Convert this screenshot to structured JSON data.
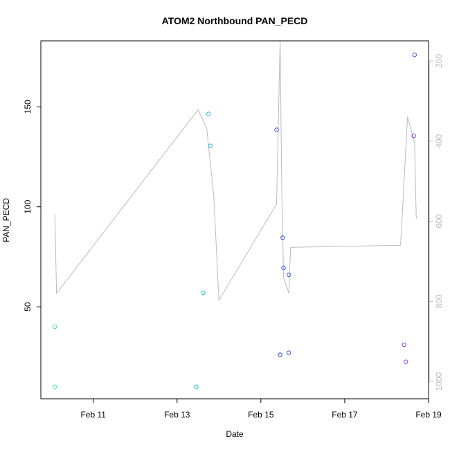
{
  "chart_data": {
    "type": "scatter",
    "title": "ATOM2 Northbound PAN_PECD",
    "xlabel": "Date",
    "ylabel": "PAN_PECD",
    "x_ticks": [
      "2000-02-11",
      "2000-02-13",
      "2000-02-15",
      "2000-02-17",
      "2000-02-19"
    ],
    "x_tick_labels": [
      "Feb 11",
      "Feb 13",
      "Feb 15",
      "Feb 17",
      "Feb 19"
    ],
    "xlim": [
      "2000-02-09T18:00",
      "2000-02-19T00:00"
    ],
    "ylim": [
      4,
      183
    ],
    "y_ticks": [
      50,
      100,
      150
    ],
    "y2_ticks": [
      200,
      400,
      600,
      800,
      1000
    ],
    "y2lim": [
      1043,
      150
    ],
    "grid": false,
    "legend": "none",
    "point_series": [
      {
        "color": "#40e0a0",
        "points": [
          {
            "x": "2000-02-10T02:00",
            "y": 40
          },
          {
            "x": "2000-02-10T02:00",
            "y": 10
          }
        ]
      },
      {
        "color": "#20b8e0",
        "points": [
          {
            "x": "2000-02-13T11:00",
            "y": 10
          },
          {
            "x": "2000-02-13T15:00",
            "y": 57
          },
          {
            "x": "2000-02-13T18:00",
            "y": 146.5
          },
          {
            "x": "2000-02-13T19:00",
            "y": 130.5
          }
        ]
      },
      {
        "color": "#3050e0",
        "points": [
          {
            "x": "2000-02-15T09:00",
            "y": 138.5
          },
          {
            "x": "2000-02-15T11:00",
            "y": 26
          },
          {
            "x": "2000-02-15T12:30",
            "y": 84.5
          },
          {
            "x": "2000-02-15T13:00",
            "y": 69.5
          },
          {
            "x": "2000-02-15T16:00",
            "y": 66
          },
          {
            "x": "2000-02-15T16:00",
            "y": 27
          }
        ]
      },
      {
        "color": "#8040e0",
        "points": [
          {
            "x": "2000-02-18T10:00",
            "y": 31
          },
          {
            "x": "2000-02-18T11:00",
            "y": 22.5
          },
          {
            "x": "2000-02-18T15:30",
            "y": 135.5
          },
          {
            "x": "2000-02-18T16:00",
            "y": 176
          }
        ]
      }
    ],
    "line_series": {
      "color": "#bbbbbb",
      "axis": "right",
      "points": [
        {
          "x": "2000-02-10T02:00",
          "y": 582
        },
        {
          "x": "2000-02-10T03:00",
          "y": 780
        },
        {
          "x": "2000-02-13T12:00",
          "y": 322
        },
        {
          "x": "2000-02-13T17:00",
          "y": 368
        },
        {
          "x": "2000-02-13T21:00",
          "y": 535
        },
        {
          "x": "2000-02-14T00:00",
          "y": 797
        },
        {
          "x": "2000-02-15T09:00",
          "y": 557
        },
        {
          "x": "2000-02-15T11:00",
          "y": 150
        },
        {
          "x": "2000-02-15T12:00",
          "y": 528
        },
        {
          "x": "2000-02-15T13:00",
          "y": 740
        },
        {
          "x": "2000-02-15T16:00",
          "y": 780
        },
        {
          "x": "2000-02-15T17:00",
          "y": 665
        },
        {
          "x": "2000-02-18T08:00",
          "y": 660
        },
        {
          "x": "2000-02-18T12:00",
          "y": 339
        },
        {
          "x": "2000-02-18T16:00",
          "y": 404
        },
        {
          "x": "2000-02-18T17:00",
          "y": 594
        }
      ]
    }
  }
}
